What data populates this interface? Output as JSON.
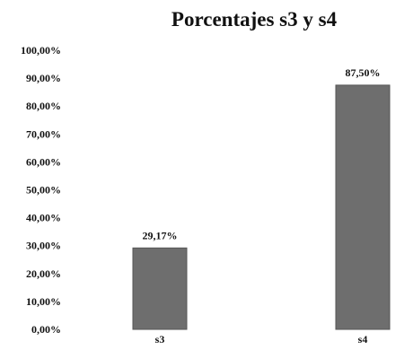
{
  "chart_data": {
    "type": "bar",
    "title": "Porcentajes s3 y s4",
    "categories": [
      "s3",
      "s4"
    ],
    "values": [
      29.17,
      87.5
    ],
    "value_labels": [
      "29,17%",
      "87,50%"
    ],
    "ylim": [
      0,
      100
    ],
    "yticks": [
      0,
      10,
      20,
      30,
      40,
      50,
      60,
      70,
      80,
      90,
      100
    ],
    "ytick_labels": [
      "0,00%",
      "10,00%",
      "20,00%",
      "30,00%",
      "40,00%",
      "50,00%",
      "60,00%",
      "70,00%",
      "80,00%",
      "90,00%",
      "100,00%"
    ],
    "xlabel": "",
    "ylabel": "",
    "grid": false,
    "legend": false,
    "bar_color": "#6e6e6e",
    "bar_edge_color": "#555555"
  }
}
